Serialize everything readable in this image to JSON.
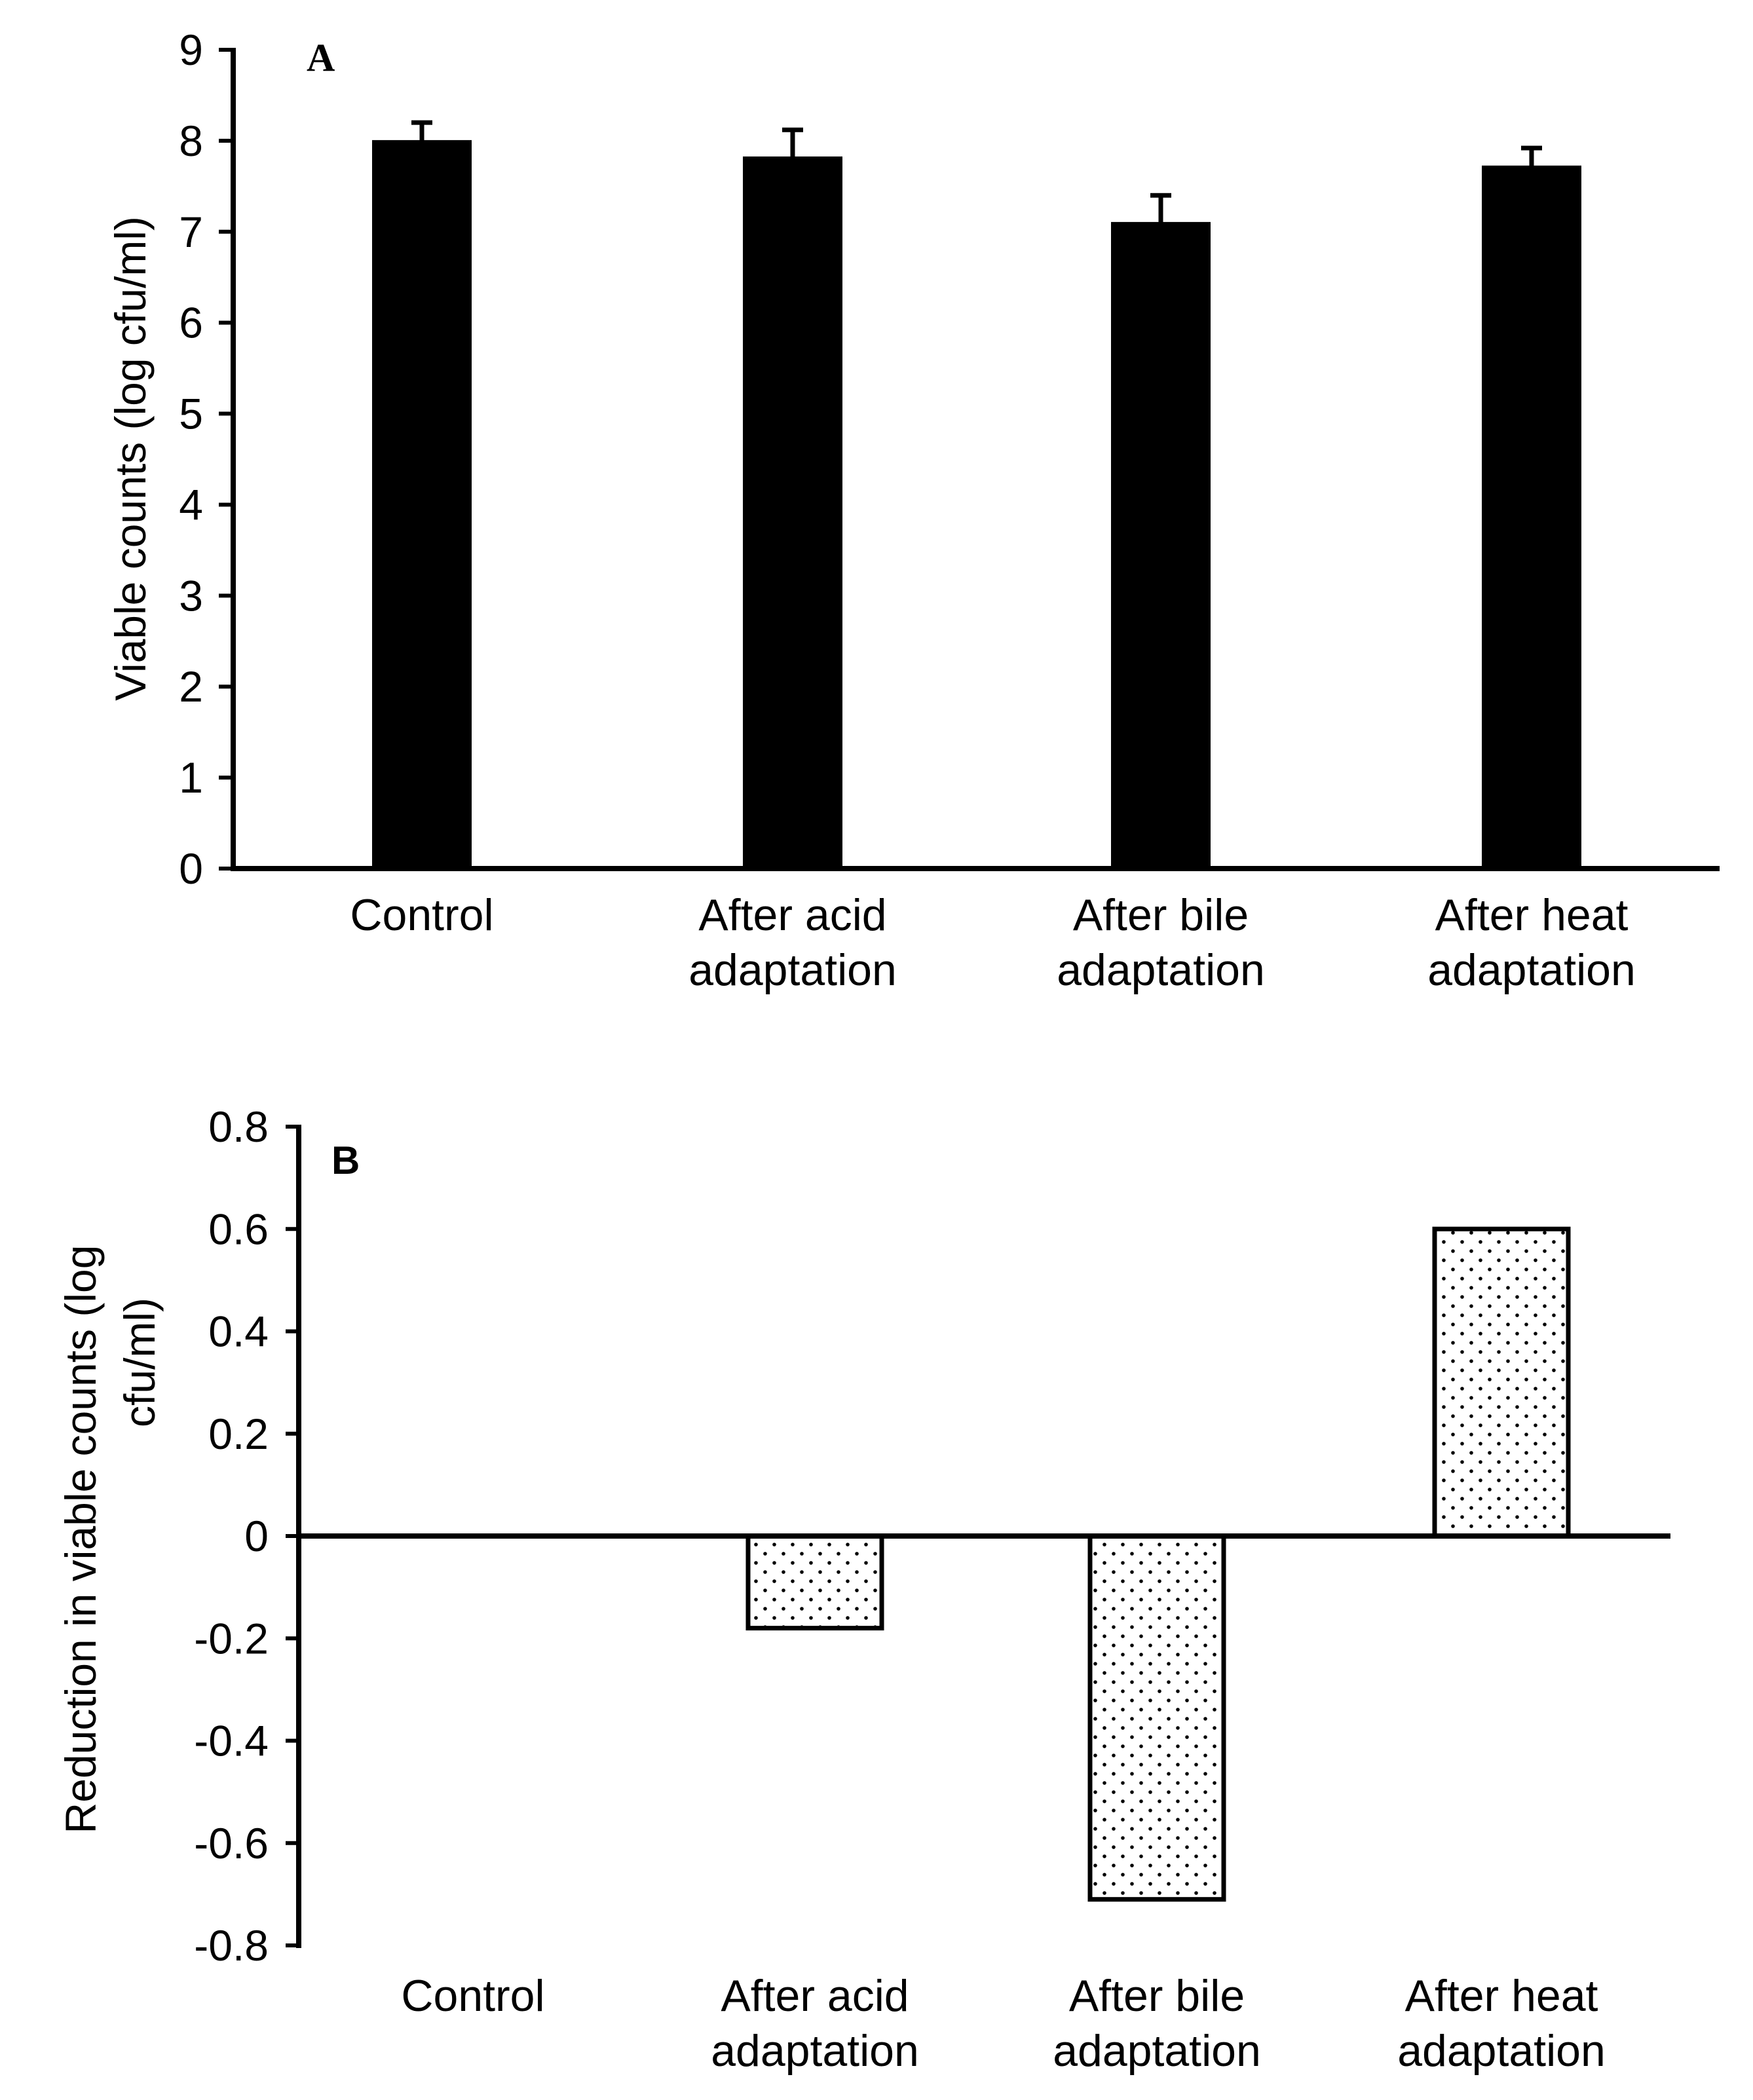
{
  "chart_data": [
    {
      "type": "bar",
      "panel_label": "A",
      "categories": [
        [
          "Control"
        ],
        [
          "After acid",
          "adaptation"
        ],
        [
          "After bile",
          "adaptation"
        ],
        [
          "After heat",
          "adaptation"
        ]
      ],
      "values": [
        8.0,
        7.82,
        7.1,
        7.72
      ],
      "error_plus": [
        0.2,
        0.3,
        0.3,
        0.2
      ],
      "ylabel": "Viable counts (log cfu/ml)",
      "ylim": [
        0,
        9
      ],
      "yticks": [
        "0",
        "1",
        "2",
        "3",
        "4",
        "5",
        "6",
        "7",
        "8",
        "9"
      ],
      "bar_fill": "solid",
      "bar_color": "#000000"
    },
    {
      "type": "bar",
      "panel_label": "B",
      "categories": [
        [
          "Control"
        ],
        [
          "After acid",
          "adaptation"
        ],
        [
          "After bile",
          "adaptation"
        ],
        [
          "After heat",
          "adaptation"
        ]
      ],
      "values": [
        0,
        -0.18,
        -0.71,
        0.6
      ],
      "ylabel_lines": [
        "Reduction in viable counts (log",
        "cfu/ml)"
      ],
      "ylim": [
        -0.8,
        0.8
      ],
      "yticks": [
        "-0.8",
        "-0.6",
        "-0.4",
        "-0.2",
        "0",
        "0.2",
        "0.4",
        "0.6",
        "0.8"
      ],
      "bar_fill": "dotted",
      "bar_color": "#000000"
    }
  ]
}
